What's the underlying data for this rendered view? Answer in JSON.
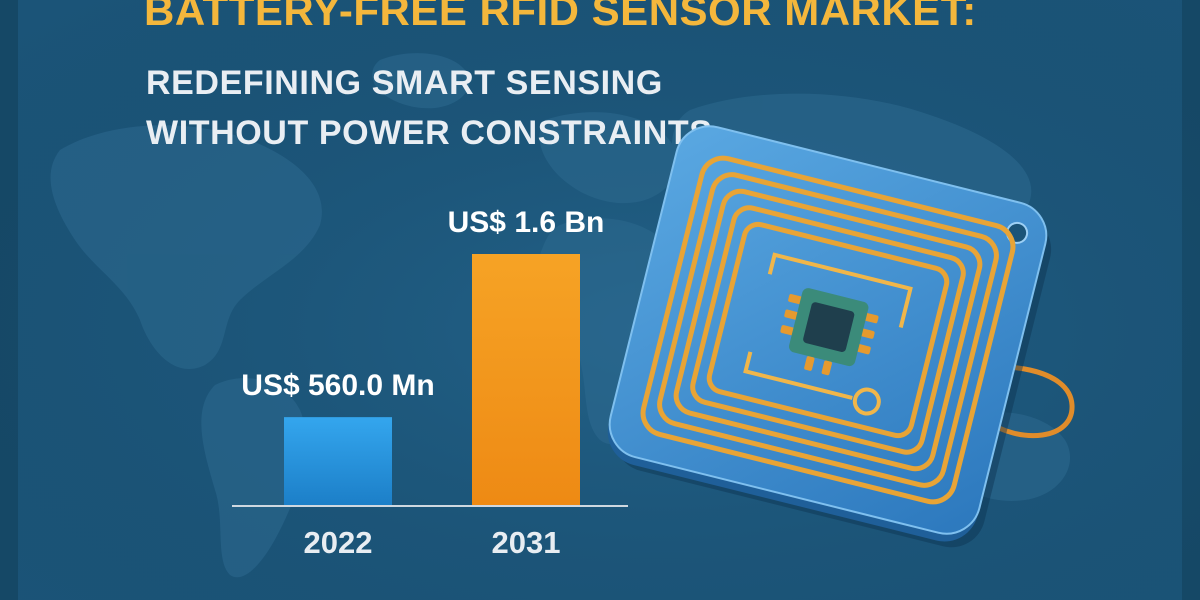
{
  "title": "BATTERY-FREE RFID SENSOR MARKET:",
  "subtitle_lines": [
    "REDEFINING SMART SENSING",
    "WITHOUT POWER CONSTRAINTS"
  ],
  "colors": {
    "background": "#1b5478",
    "title": "#f4b73c",
    "subtitle": "#e9eef3",
    "bar_2022": "#2b9ee6",
    "bar_2031": "#f39a1c",
    "axis": "#cfd8e0",
    "tag_body": "#3a8ed0",
    "antenna": "#e8a436",
    "chip": "#1f3f4d"
  },
  "chart_data": {
    "type": "bar",
    "categories": [
      "2022",
      "2031"
    ],
    "values": [
      560.0,
      1600.0
    ],
    "unit": "US$ Mn",
    "data_labels": [
      "US$ 560.0 Mn",
      "US$ 1.6 Bn"
    ],
    "bar_colors": [
      "#2b9ee6",
      "#f39a1c"
    ],
    "ylim": [
      0,
      1600
    ],
    "grid": false,
    "legend": "none",
    "xlabel": "",
    "ylabel": ""
  },
  "illustration": {
    "type": "rfid-tag-icon"
  }
}
